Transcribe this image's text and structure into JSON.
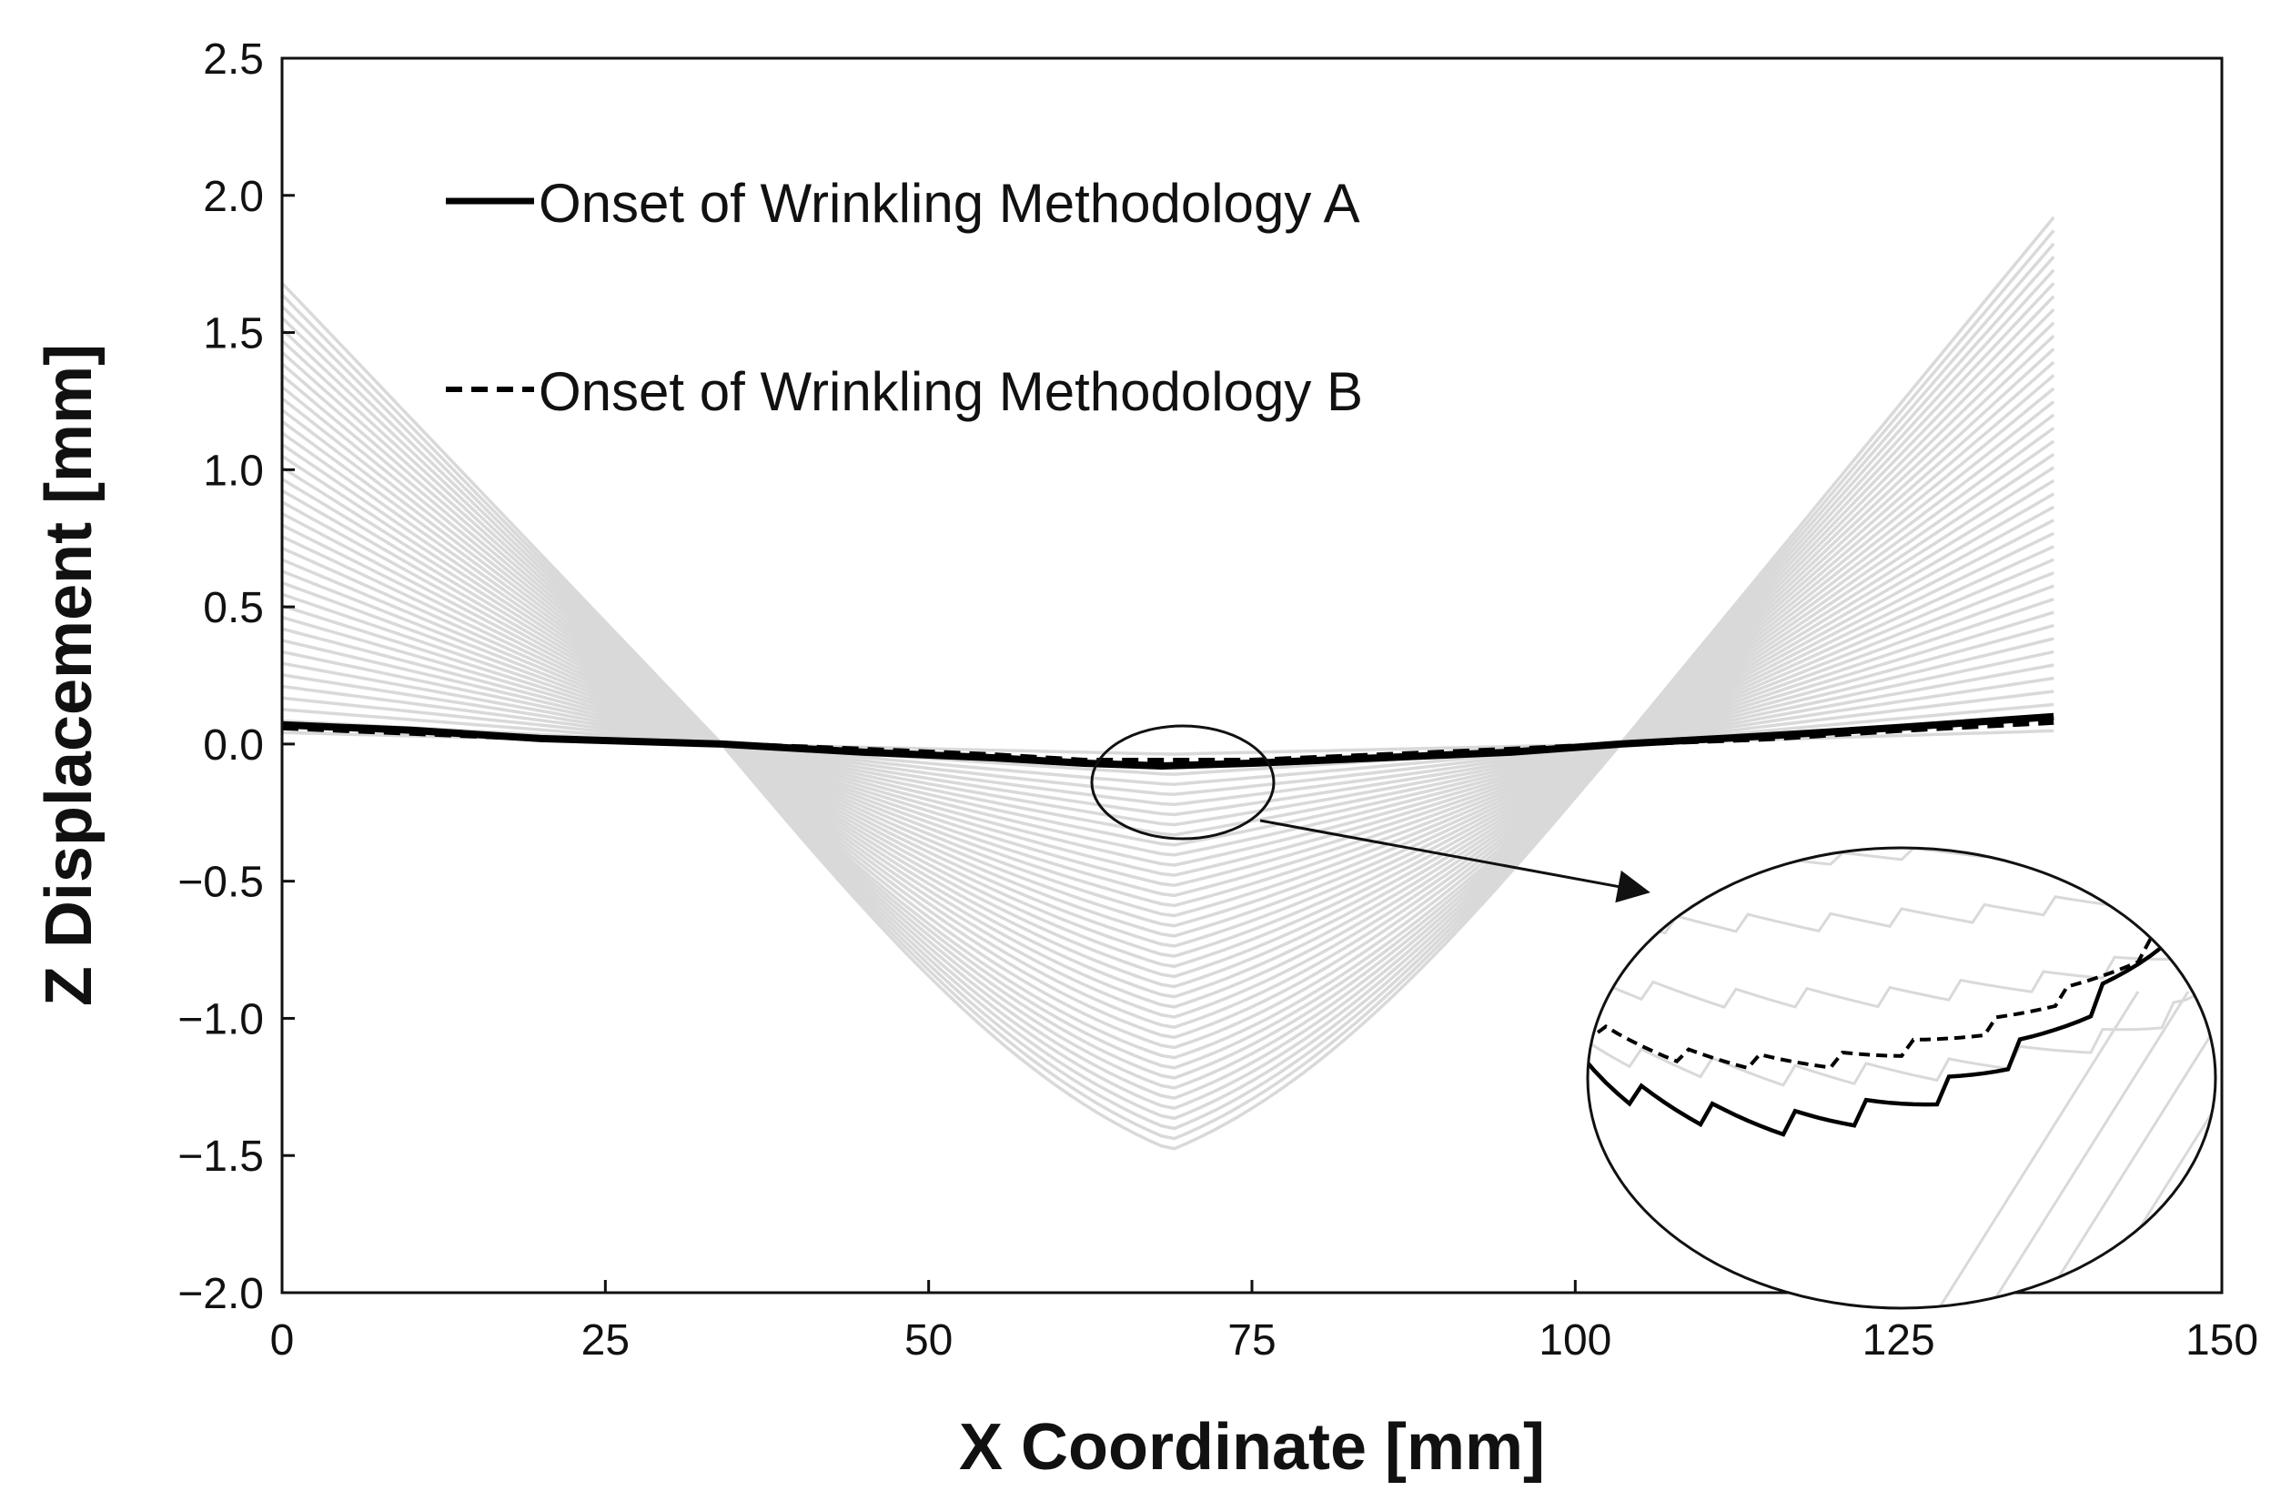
{
  "chart_data": {
    "type": "line",
    "title": "",
    "xlabel": "X Coordinate [mm]",
    "ylabel": "Z Displacement [mm]",
    "xlim": [
      0,
      150
    ],
    "ylim": [
      -2.0,
      2.5
    ],
    "xticks": [
      0,
      25,
      50,
      75,
      100,
      125,
      150
    ],
    "xtick_labels": [
      "0",
      "25",
      "50",
      "75",
      "100",
      "125",
      "150"
    ],
    "yticks": [
      2.5,
      2.0,
      1.5,
      1.0,
      0.5,
      0.0,
      -0.5,
      -1.0,
      -1.5,
      -2.0
    ],
    "ytick_labels": [
      "2.5",
      "2.0",
      "1.5",
      "1.0",
      "0.5",
      "0.0",
      "−0.5",
      "−1.0",
      "−1.5",
      "−2.0"
    ],
    "grid": false,
    "legend_position": "top-left",
    "background_series": {
      "description": "grey deformation history curves, one per load increment",
      "count": 40,
      "color": "#d9d9d9",
      "x_nodes": [
        0,
        34,
        69,
        103.5,
        137
      ],
      "final_increment_shape": [
        1.68,
        0.0,
        -1.48,
        0.0,
        1.92
      ]
    },
    "series": [
      {
        "name": "Onset of Wrinkling Methodology A",
        "style": "solid",
        "color": "#000000",
        "x": [
          0,
          10,
          20,
          34,
          45,
          55,
          62,
          68,
          75,
          85,
          95,
          103.5,
          115,
          125,
          137
        ],
        "y": [
          0.07,
          0.05,
          0.02,
          0.0,
          -0.03,
          -0.05,
          -0.07,
          -0.08,
          -0.07,
          -0.05,
          -0.03,
          0.0,
          0.03,
          0.06,
          0.1
        ]
      },
      {
        "name": "Onset of Wrinkling Methodology B",
        "style": "dashed",
        "color": "#000000",
        "x": [
          0,
          10,
          20,
          34,
          45,
          55,
          62,
          68,
          75,
          85,
          95,
          103.5,
          115,
          125,
          137
        ],
        "y": [
          0.06,
          0.04,
          0.02,
          0.0,
          -0.02,
          -0.04,
          -0.06,
          -0.06,
          -0.06,
          -0.04,
          -0.02,
          0.0,
          0.02,
          0.05,
          0.08
        ]
      }
    ],
    "annotations": [
      {
        "type": "zoom-inset",
        "target_x": 69,
        "target_y": -0.07,
        "description": "ellipse marking region near minimum, with an arrow to a magnified oval inset"
      }
    ]
  }
}
